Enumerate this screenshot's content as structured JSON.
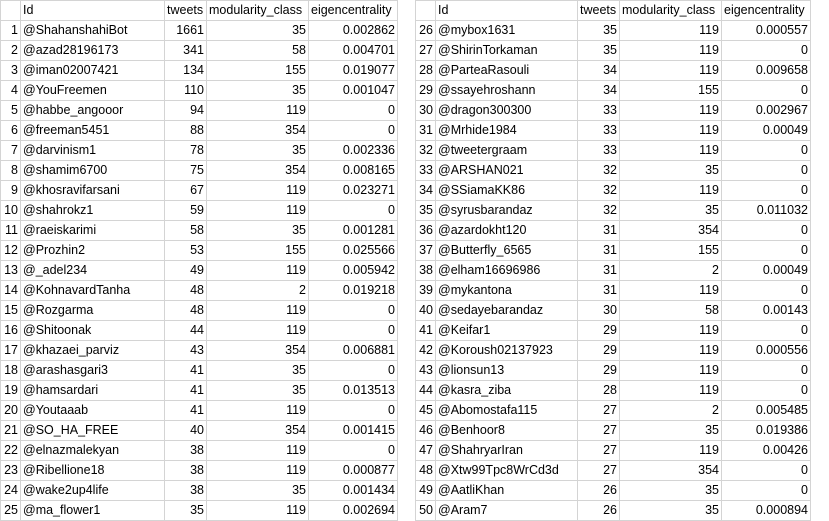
{
  "headers": [
    "Id",
    "tweets",
    "modularity_class",
    "eigencentrality"
  ],
  "left_rows": [
    {
      "n": "1",
      "id": "@ShahanshahiBot",
      "tweets": "1661",
      "mod": "35",
      "eig": "0.002862"
    },
    {
      "n": "2",
      "id": "@azad28196173",
      "tweets": "341",
      "mod": "58",
      "eig": "0.004701"
    },
    {
      "n": "3",
      "id": "@iman02007421",
      "tweets": "134",
      "mod": "155",
      "eig": "0.019077"
    },
    {
      "n": "4",
      "id": "@YouFreemen",
      "tweets": "110",
      "mod": "35",
      "eig": "0.001047"
    },
    {
      "n": "5",
      "id": "@habbe_angooor",
      "tweets": "94",
      "mod": "119",
      "eig": "0"
    },
    {
      "n": "6",
      "id": "@freeman5451",
      "tweets": "88",
      "mod": "354",
      "eig": "0"
    },
    {
      "n": "7",
      "id": "@darvinism1",
      "tweets": "78",
      "mod": "35",
      "eig": "0.002336"
    },
    {
      "n": "8",
      "id": "@shamim6700",
      "tweets": "75",
      "mod": "354",
      "eig": "0.008165"
    },
    {
      "n": "9",
      "id": "@khosravifarsani",
      "tweets": "67",
      "mod": "119",
      "eig": "0.023271"
    },
    {
      "n": "10",
      "id": "@shahrokz1",
      "tweets": "59",
      "mod": "119",
      "eig": "0"
    },
    {
      "n": "11",
      "id": "@raeiskarimi",
      "tweets": "58",
      "mod": "35",
      "eig": "0.001281"
    },
    {
      "n": "12",
      "id": "@Prozhin2",
      "tweets": "53",
      "mod": "155",
      "eig": "0.025566"
    },
    {
      "n": "13",
      "id": "@_adel234",
      "tweets": "49",
      "mod": "119",
      "eig": "0.005942"
    },
    {
      "n": "14",
      "id": "@KohnavardTanha",
      "tweets": "48",
      "mod": "2",
      "eig": "0.019218"
    },
    {
      "n": "15",
      "id": "@Rozgarma",
      "tweets": "48",
      "mod": "119",
      "eig": "0"
    },
    {
      "n": "16",
      "id": "@Shitoonak",
      "tweets": "44",
      "mod": "119",
      "eig": "0"
    },
    {
      "n": "17",
      "id": "@khazaei_parviz",
      "tweets": "43",
      "mod": "354",
      "eig": "0.006881"
    },
    {
      "n": "18",
      "id": "@arashasgari3",
      "tweets": "41",
      "mod": "35",
      "eig": "0"
    },
    {
      "n": "19",
      "id": "@hamsardari",
      "tweets": "41",
      "mod": "35",
      "eig": "0.013513"
    },
    {
      "n": "20",
      "id": "@Youtaaab",
      "tweets": "41",
      "mod": "119",
      "eig": "0"
    },
    {
      "n": "21",
      "id": "@SO_HA_FREE",
      "tweets": "40",
      "mod": "354",
      "eig": "0.001415"
    },
    {
      "n": "22",
      "id": "@elnazmalekyan",
      "tweets": "38",
      "mod": "119",
      "eig": "0"
    },
    {
      "n": "23",
      "id": "@Ribellione18",
      "tweets": "38",
      "mod": "119",
      "eig": "0.000877"
    },
    {
      "n": "24",
      "id": "@wake2up4life",
      "tweets": "38",
      "mod": "35",
      "eig": "0.001434"
    },
    {
      "n": "25",
      "id": "@ma_flower1",
      "tweets": "35",
      "mod": "119",
      "eig": "0.002694"
    }
  ],
  "right_rows": [
    {
      "n": "26",
      "id": "@mybox1631",
      "tweets": "35",
      "mod": "119",
      "eig": "0.000557"
    },
    {
      "n": "27",
      "id": "@ShirinTorkaman",
      "tweets": "35",
      "mod": "119",
      "eig": "0"
    },
    {
      "n": "28",
      "id": "@ParteaRasouli",
      "tweets": "34",
      "mod": "119",
      "eig": "0.009658"
    },
    {
      "n": "29",
      "id": "@ssayehroshann",
      "tweets": "34",
      "mod": "155",
      "eig": "0"
    },
    {
      "n": "30",
      "id": "@dragon300300",
      "tweets": "33",
      "mod": "119",
      "eig": "0.002967"
    },
    {
      "n": "31",
      "id": "@Mrhide1984",
      "tweets": "33",
      "mod": "119",
      "eig": "0.00049"
    },
    {
      "n": "32",
      "id": "@tweetergraam",
      "tweets": "33",
      "mod": "119",
      "eig": "0"
    },
    {
      "n": "33",
      "id": "@ARSHAN021",
      "tweets": "32",
      "mod": "35",
      "eig": "0"
    },
    {
      "n": "34",
      "id": "@SSiamaKK86",
      "tweets": "32",
      "mod": "119",
      "eig": "0"
    },
    {
      "n": "35",
      "id": "@syrusbarandaz",
      "tweets": "32",
      "mod": "35",
      "eig": "0.011032"
    },
    {
      "n": "36",
      "id": "@azardokht120",
      "tweets": "31",
      "mod": "354",
      "eig": "0"
    },
    {
      "n": "37",
      "id": "@Butterfly_6565",
      "tweets": "31",
      "mod": "155",
      "eig": "0"
    },
    {
      "n": "38",
      "id": "@elham16696986",
      "tweets": "31",
      "mod": "2",
      "eig": "0.00049"
    },
    {
      "n": "39",
      "id": "@mykantona",
      "tweets": "31",
      "mod": "119",
      "eig": "0"
    },
    {
      "n": "40",
      "id": "@sedayebarandaz",
      "tweets": "30",
      "mod": "58",
      "eig": "0.00143"
    },
    {
      "n": "41",
      "id": "@Keifar1",
      "tweets": "29",
      "mod": "119",
      "eig": "0"
    },
    {
      "n": "42",
      "id": "@Koroush02137923",
      "tweets": "29",
      "mod": "119",
      "eig": "0.000556"
    },
    {
      "n": "43",
      "id": "@lionsun13",
      "tweets": "29",
      "mod": "119",
      "eig": "0"
    },
    {
      "n": "44",
      "id": "@kasra_ziba",
      "tweets": "28",
      "mod": "119",
      "eig": "0"
    },
    {
      "n": "45",
      "id": "@Abomostafa115",
      "tweets": "27",
      "mod": "2",
      "eig": "0.005485"
    },
    {
      "n": "46",
      "id": "@Benhoor8",
      "tweets": "27",
      "mod": "35",
      "eig": "0.019386"
    },
    {
      "n": "47",
      "id": "@ShahryarIran",
      "tweets": "27",
      "mod": "119",
      "eig": "0.00426"
    },
    {
      "n": "48",
      "id": "@Xtw99Tpc8WrCd3d",
      "tweets": "27",
      "mod": "354",
      "eig": "0"
    },
    {
      "n": "49",
      "id": "@AatliKhan",
      "tweets": "26",
      "mod": "35",
      "eig": "0"
    },
    {
      "n": "50",
      "id": "@Aram7",
      "tweets": "26",
      "mod": "35",
      "eig": "0.000894"
    }
  ]
}
